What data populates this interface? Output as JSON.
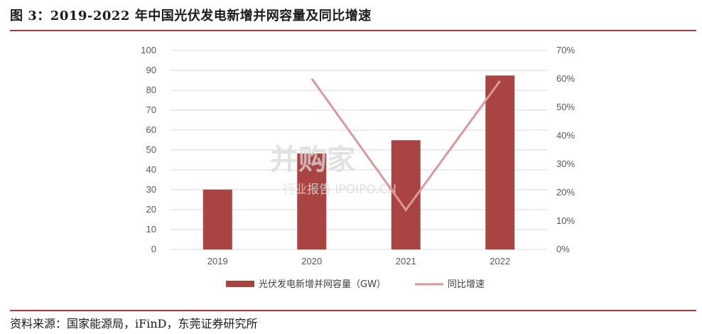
{
  "figure": {
    "title": "图 3：2019-2022 年中国光伏发电新增并网容量及同比增速",
    "source": "资料来源：国家能源局，iFinD，东莞证券研究所"
  },
  "watermark": {
    "line1": "并购家",
    "line2": "行业报告 IPOIPO.CN"
  },
  "colors": {
    "bar": "#a94442",
    "line": "#d9999a",
    "rule": "#a83a3a",
    "grid": "#d9d9d9"
  },
  "chart_data": {
    "type": "bar",
    "categories": [
      "2019",
      "2020",
      "2021",
      "2022"
    ],
    "series": [
      {
        "name": "光伏发电新增并网容量（GW）",
        "type": "bar",
        "axis": "left",
        "values": [
          30.1,
          48.2,
          54.9,
          87.4
        ]
      },
      {
        "name": "同比增速",
        "type": "line",
        "axis": "right",
        "values": [
          null,
          60.1,
          13.9,
          59.3
        ]
      }
    ],
    "y_left": {
      "min": 0,
      "max": 100,
      "step": 10,
      "ticks": [
        "0",
        "10",
        "20",
        "30",
        "40",
        "50",
        "60",
        "70",
        "80",
        "90",
        "100"
      ]
    },
    "y_right": {
      "min": 0,
      "max": 70,
      "step": 10,
      "ticks": [
        "0%",
        "10%",
        "20%",
        "30%",
        "40%",
        "50%",
        "60%",
        "70%"
      ]
    },
    "grid": true,
    "legend": "bottom"
  }
}
